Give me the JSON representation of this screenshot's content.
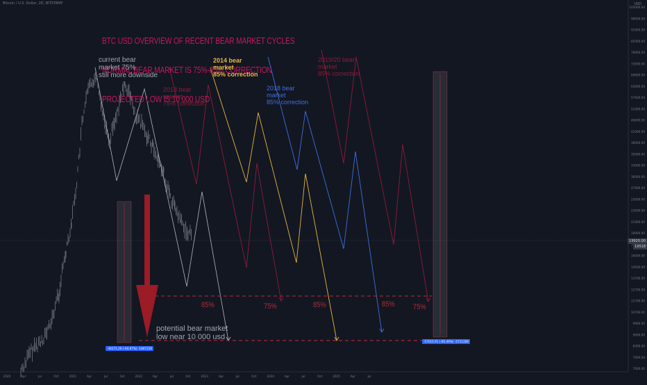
{
  "header": {
    "symbol_line": "Bitcoin / U.S. Dollar, 2D, BITSTAMP",
    "currency": "USD"
  },
  "title_block": {
    "line1": "BTC USD OVERVIEW OF RECENT BEAR MARKET CYCLES",
    "line2": "NORMAL BEAR MARKET IS 75%-85% CORRECTION",
    "line3": "PROJECTED LOW IS 10 000 USD",
    "color": "#c2185b"
  },
  "annotations": {
    "current": "current bear\nmarket 75%\nstill more downside",
    "b2018": "2018 bear\nmarket\n75% correction",
    "b2014": "2014 bear\nmarket\n85% correction",
    "b2018b": "2018 bear\nmarket\n85% correction",
    "b2019": "2019/20 bear\nmarket\n85% correction",
    "potential": "potential bear market\nlow near 10 000 usd"
  },
  "percent_labels": [
    "85%",
    "75%",
    "85%",
    "85%",
    "75%"
  ],
  "measure_tags": {
    "left": "-36271.26 (-64.87%) -1807226",
    "right": "-57015.91 (-85.49%) -5711200"
  },
  "price_boxes": [
    "19920.00",
    "19518"
  ],
  "chart_data": {
    "type": "line",
    "title": "",
    "xlabel": "",
    "ylabel": "",
    "x_tick_labels": [
      "2020",
      "Apr",
      "Jul",
      "Oct",
      "2021",
      "Apr",
      "Jul",
      "Oct",
      "2022",
      "Apr",
      "Jul",
      "Oct",
      "2023",
      "Apr",
      "Jul",
      "Oct",
      "2024",
      "Apr",
      "Jul",
      "Oct",
      "2025",
      "Apr",
      "Jul"
    ],
    "y_tick_labels": [
      "105000.00",
      "98000.00",
      "91000.00",
      "85000.00",
      "78000.00",
      "73000.00",
      "69000.00",
      "63000.00",
      "57000.00",
      "51000.00",
      "46000.00",
      "42000.00",
      "38000.00",
      "35000.00",
      "33000.00",
      "30000.00",
      "27000.00",
      "25000.00",
      "23000.00",
      "21000.00",
      "19000.00",
      "17500.00",
      "16000.00",
      "14500.00",
      "13700.00",
      "12700.00",
      "11700.00",
      "10700.00",
      "9900.00",
      "9000.00",
      "8300.00",
      "7600.00",
      "7000.00"
    ],
    "y_scale": "log",
    "horizontal_levels": [
      13000,
      9500
    ],
    "colors": {
      "candles": "#9598a1",
      "current": "#b2b5be",
      "b2018": "#8e1b3a",
      "b2014": "#e8b73f",
      "b2018b": "#3f6fe0",
      "b2019": "#8e1b3a",
      "arrow": "#9b1b26",
      "dashed": "#c4283a"
    }
  }
}
